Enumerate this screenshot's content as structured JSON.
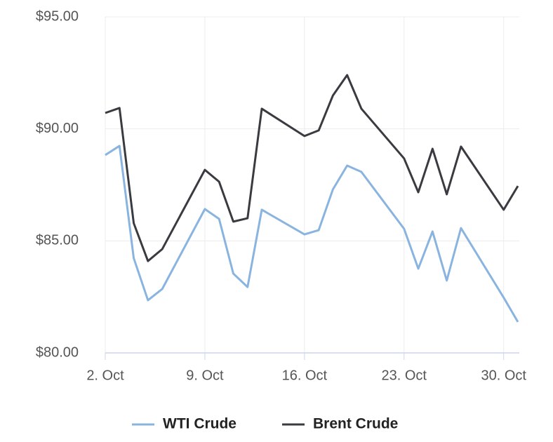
{
  "chart_data": {
    "type": "line",
    "x": [
      2,
      3,
      4,
      5,
      6,
      9,
      10,
      11,
      12,
      13,
      16,
      17,
      18,
      19,
      20,
      23,
      24,
      25,
      26,
      27,
      30,
      31
    ],
    "series": [
      {
        "name": "WTI Crude",
        "color": "#8ab4e0",
        "values": [
          88.83,
          89.24,
          84.23,
          82.35,
          82.85,
          86.42,
          85.98,
          83.54,
          82.94,
          86.39,
          85.29,
          85.48,
          87.3,
          88.36,
          88.08,
          85.54,
          83.76,
          85.42,
          83.23,
          85.57,
          82.47,
          81.38
        ]
      },
      {
        "name": "Brent Crude",
        "color": "#3a3b40",
        "values": [
          90.71,
          90.93,
          85.79,
          84.1,
          84.63,
          88.17,
          87.64,
          85.86,
          86.01,
          90.9,
          89.68,
          89.93,
          91.49,
          92.4,
          90.9,
          88.68,
          87.17,
          89.11,
          87.08,
          89.21,
          86.39,
          87.45
        ]
      }
    ],
    "xlim": [
      2,
      31.1
    ],
    "xticks": [
      {
        "value": 2,
        "label": "2. Oct"
      },
      {
        "value": 9,
        "label": "9. Oct"
      },
      {
        "value": 16,
        "label": "16. Oct"
      },
      {
        "value": 23,
        "label": "23. Oct"
      },
      {
        "value": 30,
        "label": "30. Oct"
      }
    ],
    "ylim": [
      80,
      95
    ],
    "yticks": [
      {
        "value": 80,
        "label": "$80.00"
      },
      {
        "value": 85,
        "label": "$85.00"
      },
      {
        "value": 90,
        "label": "$90.00"
      },
      {
        "value": 95,
        "label": "$95.00"
      }
    ],
    "grid": true,
    "legend": "bottom"
  }
}
